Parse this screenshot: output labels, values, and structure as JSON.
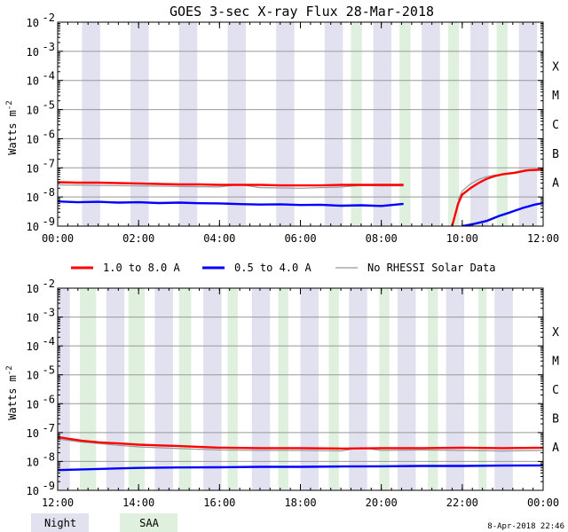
{
  "title": "GOES 3-sec X-ray Flux   28-Mar-2018",
  "ylabel": "Watts m",
  "ylabel_sup": "-2",
  "timestamp": "8-Apr-2018 22:46",
  "colors": {
    "long": "#ff0000",
    "short": "#0000ff",
    "rhessi": "#999999",
    "night": "#e1e1f0",
    "saa": "#dff0df",
    "grid": "#999999"
  },
  "legend": [
    {
      "label": "1.0 to 8.0 A",
      "color": "#ff0000"
    },
    {
      "label": "0.5 to 4.0 A",
      "color": "#0000ff"
    },
    {
      "label": "No RHESSI Solar Data",
      "color": "#999999"
    }
  ],
  "bands_legend": [
    {
      "label": "Night",
      "color": "#e1e1f0"
    },
    {
      "label": "SAA",
      "color": "#dff0df"
    }
  ],
  "chart_data": [
    {
      "type": "line",
      "title": "GOES 3-sec X-ray Flux   28-Mar-2018",
      "ylabel": "Watts m-2",
      "yscale": "log",
      "ylim": [
        1e-09,
        0.01
      ],
      "x_range_hours": [
        0,
        12
      ],
      "xticks": [
        "00:00",
        "02:00",
        "04:00",
        "06:00",
        "08:00",
        "10:00",
        "12:00"
      ],
      "yticks": [
        {
          "base": "10",
          "exp": "-9"
        },
        {
          "base": "10",
          "exp": "-8"
        },
        {
          "base": "10",
          "exp": "-7"
        },
        {
          "base": "10",
          "exp": "-6"
        },
        {
          "base": "10",
          "exp": "-5"
        },
        {
          "base": "10",
          "exp": "-4"
        },
        {
          "base": "10",
          "exp": "-3"
        },
        {
          "base": "10",
          "exp": "-2"
        }
      ],
      "classes": [
        "A",
        "B",
        "C",
        "M",
        "X"
      ],
      "night_hours": [
        [
          0.6,
          1.05
        ],
        [
          1.8,
          2.25
        ],
        [
          3.0,
          3.45
        ],
        [
          4.2,
          4.65
        ],
        [
          5.4,
          5.85
        ],
        [
          6.6,
          7.05
        ],
        [
          7.8,
          8.25
        ],
        [
          9.0,
          9.45
        ],
        [
          10.2,
          10.65
        ],
        [
          11.4,
          11.85
        ]
      ],
      "saa_hours": [
        [
          7.25,
          7.52
        ],
        [
          8.45,
          8.72
        ],
        [
          9.65,
          9.92
        ],
        [
          10.85,
          11.12
        ]
      ],
      "series": [
        {
          "name": "1.0 to 8.0 A",
          "color": "#ff0000",
          "segments": [
            {
              "x": [
                0,
                0.5,
                1,
                1.5,
                2,
                2.5,
                3,
                3.5,
                4,
                4.5,
                5,
                5.5,
                6,
                6.5,
                7,
                7.5,
                8,
                8.55
              ],
              "y": [
                3.2e-08,
                3.1e-08,
                3.1e-08,
                3e-08,
                2.9e-08,
                2.8e-08,
                2.7e-08,
                2.7e-08,
                2.6e-08,
                2.6e-08,
                2.6e-08,
                2.5e-08,
                2.5e-08,
                2.5e-08,
                2.6e-08,
                2.6e-08,
                2.6e-08,
                2.6e-08
              ]
            },
            {
              "x": [
                9.75,
                9.9,
                10.0,
                10.2,
                10.4,
                10.6,
                10.8,
                11.0,
                11.3,
                11.6,
                12.0
              ],
              "y": [
                1e-09,
                6e-09,
                1.2e-08,
                2e-08,
                3e-08,
                4.2e-08,
                5.2e-08,
                6e-08,
                6.8e-08,
                8.2e-08,
                8.8e-08
              ]
            }
          ]
        },
        {
          "name": "0.5 to 4.0 A",
          "color": "#0000ff",
          "segments": [
            {
              "x": [
                0,
                0.5,
                1,
                1.5,
                2,
                2.5,
                3,
                3.5,
                4,
                4.5,
                5,
                5.5,
                6,
                6.5,
                7,
                7.5,
                8,
                8.55
              ],
              "y": [
                7e-09,
                6.6e-09,
                6.8e-09,
                6.4e-09,
                6.6e-09,
                6.2e-09,
                6.4e-09,
                6.1e-09,
                6e-09,
                5.7e-09,
                5.5e-09,
                5.6e-09,
                5.3e-09,
                5.4e-09,
                5e-09,
                5.2e-09,
                4.9e-09,
                5.8e-09
              ]
            },
            {
              "x": [
                10.0,
                10.3,
                10.6,
                10.9,
                11.2,
                11.5,
                11.8,
                12.0
              ],
              "y": [
                1e-09,
                1.2e-09,
                1.5e-09,
                2.2e-09,
                3e-09,
                4.2e-09,
                5.5e-09,
                6.2e-09
              ]
            }
          ]
        },
        {
          "name": "No RHESSI Solar Data",
          "color": "#999999",
          "segments": [
            {
              "x": [
                0,
                1,
                2,
                3,
                4,
                4.5,
                5,
                6,
                7,
                7.5,
                8,
                8.55
              ],
              "y": [
                2.6e-08,
                2.5e-08,
                2.4e-08,
                2.3e-08,
                2.2e-08,
                2.7e-08,
                2.1e-08,
                2e-08,
                2.2e-08,
                2.5e-08,
                2.4e-08,
                2.4e-08
              ]
            },
            {
              "x": [
                9.9,
                10.0,
                10.2,
                10.4,
                10.6,
                10.8,
                11.0,
                11.3,
                11.6,
                12.0
              ],
              "y": [
                8e-09,
                1.6e-08,
                2.8e-08,
                4e-08,
                5e-08,
                5.6e-08,
                5.9e-08,
                6.5e-08,
                7.8e-08,
                8.3e-08
              ]
            }
          ]
        }
      ]
    },
    {
      "type": "line",
      "title": "",
      "ylabel": "Watts m-2",
      "yscale": "log",
      "ylim": [
        1e-09,
        0.01
      ],
      "x_range_hours": [
        12,
        24
      ],
      "xticks": [
        "12:00",
        "14:00",
        "16:00",
        "18:00",
        "20:00",
        "22:00",
        "00:00"
      ],
      "yticks": [
        {
          "base": "10",
          "exp": "-9"
        },
        {
          "base": "10",
          "exp": "-8"
        },
        {
          "base": "10",
          "exp": "-7"
        },
        {
          "base": "10",
          "exp": "-6"
        },
        {
          "base": "10",
          "exp": "-5"
        },
        {
          "base": "10",
          "exp": "-4"
        },
        {
          "base": "10",
          "exp": "-3"
        },
        {
          "base": "10",
          "exp": "-2"
        }
      ],
      "classes": [
        "A",
        "B",
        "C",
        "M",
        "X"
      ],
      "night_hours": [
        [
          12.0,
          12.3
        ],
        [
          13.2,
          13.65
        ],
        [
          14.4,
          14.85
        ],
        [
          15.6,
          16.05
        ],
        [
          16.8,
          17.25
        ],
        [
          18.0,
          18.45
        ],
        [
          19.2,
          19.65
        ],
        [
          20.4,
          20.85
        ],
        [
          21.6,
          22.05
        ],
        [
          22.8,
          23.25
        ]
      ],
      "saa_hours": [
        [
          12.55,
          12.95
        ],
        [
          13.75,
          14.15
        ],
        [
          15.0,
          15.3
        ],
        [
          16.2,
          16.45
        ],
        [
          17.45,
          17.7
        ],
        [
          18.7,
          18.95
        ],
        [
          19.95,
          20.2
        ],
        [
          21.15,
          21.4
        ],
        [
          22.4,
          22.6
        ]
      ],
      "series": [
        {
          "name": "1.0 to 8.0 A",
          "color": "#ff0000",
          "segments": [
            {
              "x": [
                12,
                12.3,
                12.6,
                13,
                13.5,
                14,
                14.5,
                15,
                16,
                17,
                18,
                19,
                20,
                21,
                22,
                23,
                24
              ],
              "y": [
                7e-08,
                6e-08,
                5.2e-08,
                4.6e-08,
                4.2e-08,
                3.8e-08,
                3.6e-08,
                3.4e-08,
                3e-08,
                2.9e-08,
                2.9e-08,
                2.8e-08,
                2.9e-08,
                2.9e-08,
                3e-08,
                2.9e-08,
                3e-08
              ]
            }
          ]
        },
        {
          "name": "0.5 to 4.0 A",
          "color": "#0000ff",
          "segments": [
            {
              "x": [
                12,
                13,
                14,
                15,
                16,
                17,
                18,
                19,
                20,
                21,
                22,
                23,
                24
              ],
              "y": [
                5e-09,
                5.5e-09,
                6e-09,
                6.2e-09,
                6.3e-09,
                6.5e-09,
                6.5e-09,
                6.7e-09,
                6.8e-09,
                7e-09,
                7e-09,
                7.2e-09,
                7.3e-09
              ]
            }
          ]
        },
        {
          "name": "No RHESSI Solar Data",
          "color": "#999999",
          "segments": [
            {
              "x": [
                12,
                12.5,
                13,
                13.5,
                14,
                15,
                16,
                17,
                18,
                19,
                19.5,
                20,
                21,
                22,
                23,
                24
              ],
              "y": [
                6e-08,
                4.8e-08,
                4.2e-08,
                3.6e-08,
                3.2e-08,
                2.8e-08,
                2.5e-08,
                2.4e-08,
                2.4e-08,
                2.3e-08,
                3e-08,
                2.4e-08,
                2.5e-08,
                2.4e-08,
                2.3e-08,
                2.4e-08
              ]
            }
          ]
        }
      ]
    }
  ]
}
